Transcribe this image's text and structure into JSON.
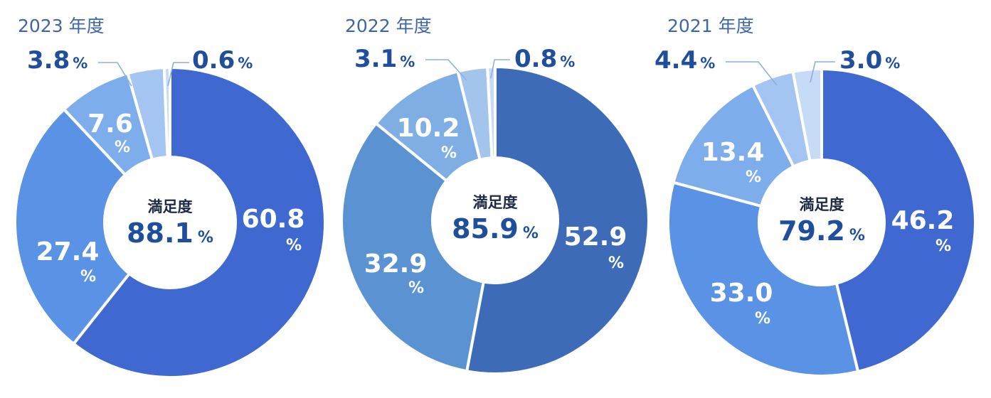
{
  "chart_data": [
    {
      "type": "pie",
      "title": "2023 年度",
      "center_label": "満足度",
      "center_value": "88.1",
      "unit": "%",
      "values": [
        60.8,
        27.4,
        7.6,
        3.8,
        0.6
      ],
      "labels": [
        "60.8",
        "27.4",
        "7.6",
        "3.8",
        "0.6"
      ],
      "colors": [
        "#3f69d1",
        "#5a93e6",
        "#7eadec",
        "#a4c4f1",
        "#c6dbf6"
      ]
    },
    {
      "type": "pie",
      "title": "2022 年度",
      "center_label": "満足度",
      "center_value": "85.9",
      "unit": "%",
      "values": [
        52.9,
        32.9,
        10.2,
        3.1,
        0.8
      ],
      "labels": [
        "52.9",
        "32.9",
        "10.2",
        "3.1",
        "0.8"
      ],
      "colors": [
        "#3e6bb7",
        "#5b92d2",
        "#7eaee3",
        "#a3c5ec",
        "#c6dcf4"
      ]
    },
    {
      "type": "pie",
      "title": "2021 年度",
      "center_label": "満足度",
      "center_value": "79.2",
      "unit": "%",
      "values": [
        46.2,
        33.0,
        13.4,
        4.4,
        3.0
      ],
      "labels": [
        "46.2",
        "33.0",
        "13.4",
        "4.4",
        "3.0"
      ],
      "colors": [
        "#3f69d1",
        "#5a93e6",
        "#7eadec",
        "#a4c4f1",
        "#c6dbf6"
      ]
    }
  ]
}
